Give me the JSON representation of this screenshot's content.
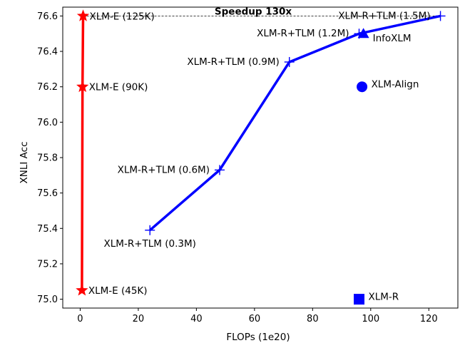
{
  "chart_data": {
    "type": "line",
    "xlabel": "FLOPs (1e20)",
    "ylabel": "XNLI Acc",
    "xlim": [
      -6,
      130
    ],
    "ylim": [
      74.95,
      76.65
    ],
    "x_ticks": [
      0,
      20,
      40,
      60,
      80,
      100,
      120
    ],
    "y_ticks": [
      75.0,
      75.2,
      75.4,
      75.6,
      75.8,
      76.0,
      76.2,
      76.4,
      76.6
    ],
    "x_tick_labels": [
      "0",
      "20",
      "40",
      "60",
      "80",
      "100",
      "120"
    ],
    "y_tick_labels": [
      "75.0",
      "75.2",
      "75.4",
      "75.6",
      "75.8",
      "76.0",
      "76.2",
      "76.4",
      "76.6"
    ],
    "grid": false,
    "series": [
      {
        "color": "#ff0000",
        "marker": "star",
        "points": [
          {
            "x": 0.6,
            "y": 75.05,
            "label": "XLM-E (45K)",
            "label_pos": "right"
          },
          {
            "x": 0.8,
            "y": 76.2,
            "label": "XLM-E (90K)",
            "label_pos": "right"
          },
          {
            "x": 1.0,
            "y": 76.6,
            "label": "XLM-E (125K)",
            "label_pos": "right"
          }
        ]
      },
      {
        "color": "#0000ff",
        "marker": "plus",
        "points": [
          {
            "x": 24,
            "y": 75.39,
            "label": "XLM-R+TLM (0.3M)",
            "label_pos": "below"
          },
          {
            "x": 48,
            "y": 75.73,
            "label": "XLM-R+TLM (0.6M)",
            "label_pos": "left"
          },
          {
            "x": 72,
            "y": 76.34,
            "label": "XLM-R+TLM (0.9M)",
            "label_pos": "left"
          },
          {
            "x": 96,
            "y": 76.5,
            "label": "XLM-R+TLM (1.2M)",
            "label_pos": "left"
          },
          {
            "x": 124,
            "y": 76.6,
            "label": "XLM-R+TLM (1.5M)",
            "label_pos": "left"
          }
        ]
      }
    ],
    "standalone_points": [
      {
        "x": 96,
        "y": 75.0,
        "marker": "square",
        "color": "#0000ff",
        "label": "XLM-R"
      },
      {
        "x": 97,
        "y": 76.2,
        "marker": "circle",
        "color": "#0000ff",
        "label": "XLM-Align"
      },
      {
        "x": 97.5,
        "y": 76.5,
        "marker": "triangle",
        "color": "#0000ff",
        "label": "InfoXLM"
      }
    ],
    "annotations": [
      {
        "text": "Speedup 130x",
        "bold": true,
        "x1": 1.0,
        "x2": 124,
        "y": 76.6,
        "line_style": "dashed"
      }
    ]
  }
}
